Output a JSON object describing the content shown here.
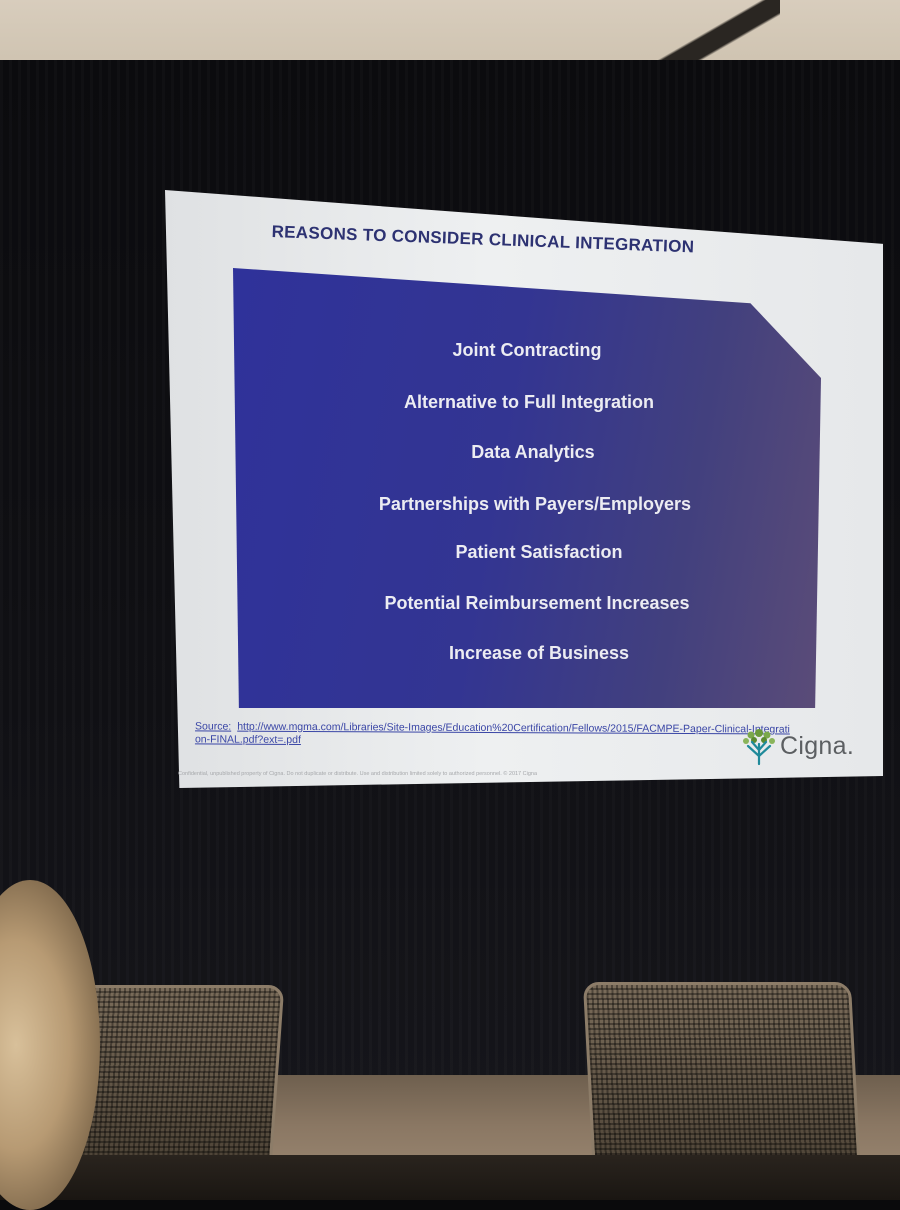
{
  "slide": {
    "title": "REASONS TO CONSIDER CLINICAL INTEGRATION",
    "items": [
      "Joint Contracting",
      "Alternative to Full Integration",
      "Data Analytics",
      "Partnerships with Payers/Employers",
      "Patient Satisfaction",
      "Potential Reimbursement Increases",
      "Increase of Business"
    ],
    "source_label": "Source:",
    "source_url": "http://www.mgma.com/Libraries/Site-Images/Education%20Certification/Fellows/2015/FACMPE-Paper-Clinical-Integration-FINAL.pdf?ext=.pdf",
    "footer_note": "Confidential, unpublished property of Cigna. Do not duplicate or distribute. Use and distribution limited solely to authorized personnel. © 2017 Cigna",
    "logo_text": "Cigna.",
    "colors": {
      "title": "#2d3272",
      "panel_start": "#2f329a",
      "panel_end": "#5b4c78",
      "item_text": "#ececf2",
      "link": "#3a46a6",
      "logo_green": "#6a9a3a",
      "logo_teal": "#1f8a9a"
    }
  }
}
